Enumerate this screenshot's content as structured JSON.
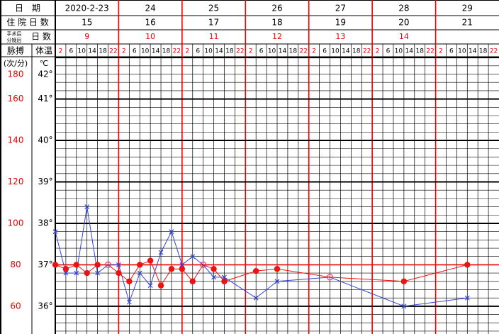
{
  "header": {
    "date_label": "日　期",
    "hospital_days_label": "住 院 日 数",
    "postop_label_top": "手术后",
    "postop_label_bottom": "分娩后",
    "postop_days_label": "日 数",
    "pulse_label": "脉搏",
    "temp_label": "体温",
    "pulse_unit": "(次/分)",
    "temp_unit": "℃"
  },
  "chart_data": {
    "type": "line",
    "dates": [
      "2020-2-23",
      "24",
      "25",
      "26",
      "27",
      "28",
      "29"
    ],
    "hospital_days": [
      15,
      16,
      17,
      18,
      19,
      20,
      21
    ],
    "postop_days": [
      9,
      10,
      11,
      12,
      13,
      14,
      null
    ],
    "times": [
      2,
      6,
      10,
      14,
      18,
      22
    ],
    "xlim": [
      0,
      168
    ],
    "ylim": [
      35.33,
      42.02
    ],
    "yticks": [
      {
        "value": 42,
        "label": "42°"
      },
      {
        "value": 41,
        "label": "41°"
      },
      {
        "value": 40,
        "label": "40°"
      },
      {
        "value": 39,
        "label": "39°"
      },
      {
        "value": 38,
        "label": "38°"
      },
      {
        "value": 37,
        "label": "37°"
      },
      {
        "value": 36,
        "label": "36°"
      }
    ],
    "y2lim": [
      46.6,
      180.4
    ],
    "y2ticks": [
      180,
      160,
      140,
      120,
      100,
      80,
      60
    ],
    "series": [
      {
        "name": "体温",
        "color": "#3344dd",
        "x": [
          2,
          6,
          10,
          14,
          18,
          22,
          26,
          30,
          34,
          38,
          42,
          46,
          50,
          54,
          58,
          62,
          66,
          78,
          86,
          106,
          134,
          158
        ],
        "values": [
          37.8,
          36.8,
          36.8,
          38.4,
          36.8,
          37.0,
          37.0,
          36.1,
          36.8,
          36.5,
          37.3,
          37.8,
          37.0,
          37.2,
          37.0,
          36.7,
          36.7,
          36.2,
          36.6,
          36.7,
          36.0,
          36.2
        ]
      },
      {
        "name": "脉搏",
        "color": "#ee1111",
        "axis": "y2",
        "x": [
          2,
          6,
          10,
          14,
          18,
          22,
          26,
          30,
          34,
          38,
          42,
          46,
          50,
          54,
          58,
          62,
          66,
          78,
          86,
          106,
          134,
          158
        ],
        "values": [
          80,
          78,
          80,
          76,
          80,
          80,
          76,
          72,
          80,
          82,
          70,
          78,
          78,
          72,
          80,
          78,
          72,
          77,
          78,
          74,
          72,
          80
        ]
      }
    ]
  }
}
